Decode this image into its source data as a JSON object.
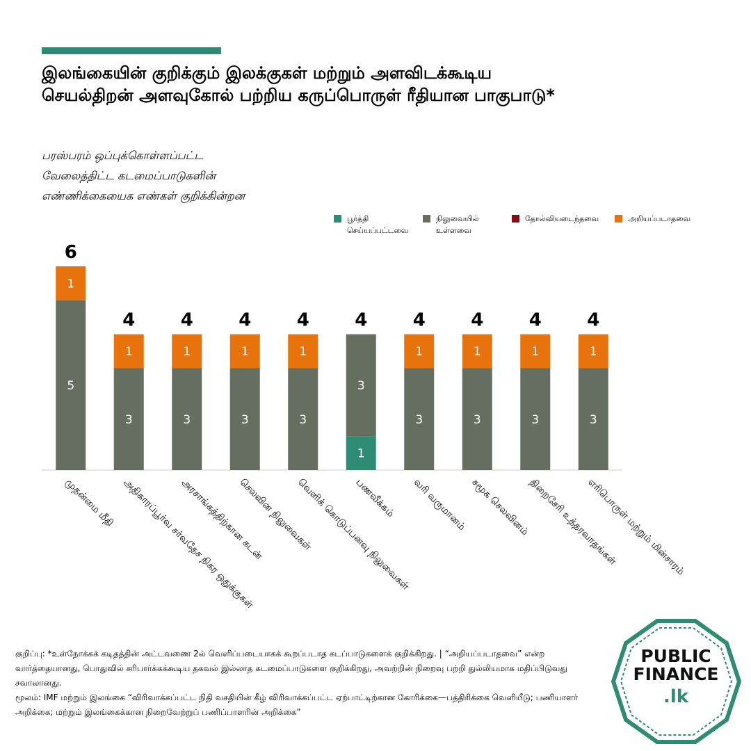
{
  "chart_data": {
    "type": "stacked-bar",
    "title": [
      "இலங்கையின் குறிக்கும் இலக்குகள் மற்றும் அளவிடக்கூடிய",
      "செயல்திறன் அளவுகோல் பற்றிய கருப்பொருள் ரீதியான பாகுபாடு*"
    ],
    "subtitle": [
      "பரஸ்பரம் ஒப்புக்கொள்ளப்பட்ட",
      "வேலைத்திட்ட கடமைப்பாடுகளின்",
      "எண்ணிக்கையைக எண்கள் குறிக்கின்றன"
    ],
    "categories": [
      "முதன்மை மீதி",
      "அதிகாரப்பூர்வ சர்வதேச நிகர ஒதுக்குகள்",
      "அரசாங்கத்திற்கான கடன்",
      "செலவின நிலுவைகள்",
      "வெளிக் கொடுப்பனவு நிலுவைகள்",
      "பணவீக்கம்",
      "வரி வருமானம்",
      "சமூக செலவினம்",
      "திறைசேரி உத்தரவாதங்கள்",
      "எரிபொருள் மற்றும் மின்சாரம்"
    ],
    "series": [
      {
        "name": "பூர்த்தி செய்யப்பட்டவை",
        "color": "#2e8b74",
        "values": [
          0,
          0,
          0,
          0,
          0,
          1,
          0,
          0,
          0,
          0
        ]
      },
      {
        "name": "நிலுவையில் உள்ளவை",
        "color": "#666e60",
        "values": [
          5,
          3,
          3,
          3,
          3,
          3,
          3,
          3,
          3,
          3
        ]
      },
      {
        "name": "தோல்வியடைந்தவை",
        "color": "#8b0a1a",
        "values": [
          0,
          0,
          0,
          0,
          0,
          0,
          0,
          0,
          0,
          0
        ]
      },
      {
        "name": "அறியப்படாதவை",
        "color": "#e8720c",
        "values": [
          1,
          1,
          1,
          1,
          1,
          0,
          1,
          1,
          1,
          1
        ]
      }
    ],
    "totals": [
      6,
      4,
      4,
      4,
      4,
      4,
      4,
      4,
      4,
      4
    ],
    "notes": [
      "குறிப்பு: *உள்நோக்கக் கடிதத்தின் அட்டவணை 2ல் வெளிப்படையாகக் கூறப்படாத கடப்பாடுகளைக் குறிக்கிறது. | “அறியப்படாதவை” என்ற வார்த்தையானது, பொதுவில் சரிபார்க்கக்கூடிய தகவல் இல்லாத கடமைப்பாடுகளை குறிக்கிறது, அவற்றின் நிறைவு பற்றி துல்லியமாக மதிப்பிடுவது சவாலானது.",
      "மூலம்: IMF மற்றும் இலங்கை “விரிவாக்கப்பட்ட நிதி வசதியின் கீழ் விரிவாக்கப்பட்ட ஏற்பாட்டிற்கான கோரிக்கை—பத்திரிக்கை வெளியீடு; பணியாளர் அறிக்கை; மற்றும் இலங்கைக்கான நிறைவேற்றுப் பணிப்பாளரின் அறிக்கை”"
    ],
    "logo": [
      "PUBLIC",
      "FINANCE",
      ".lk"
    ]
  }
}
